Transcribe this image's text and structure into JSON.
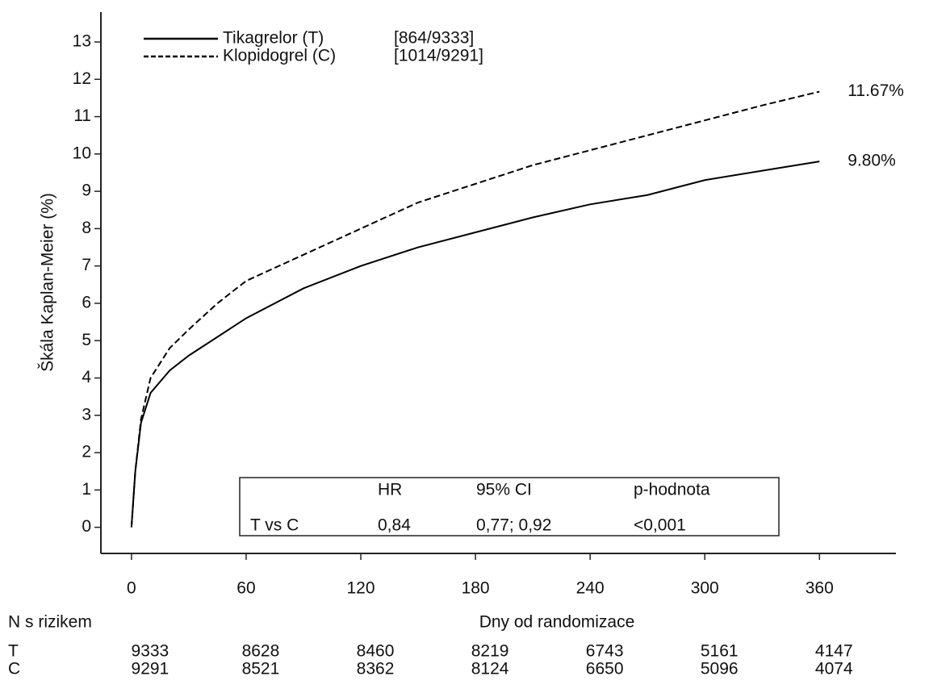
{
  "chart_data": {
    "type": "line",
    "y_label": "Škála Kaplan-Meier (%)",
    "x_label": "Dny od randomizace",
    "x": [
      0,
      2,
      5,
      10,
      20,
      30,
      45,
      60,
      90,
      120,
      150,
      180,
      210,
      240,
      270,
      300,
      330,
      360
    ],
    "series": [
      {
        "name": "Tikagrelor (T)",
        "count": "[864/9333]",
        "color": "#000000",
        "style": "solid",
        "values": [
          0,
          1.5,
          2.8,
          3.6,
          4.2,
          4.6,
          5.1,
          5.6,
          6.4,
          7.0,
          7.5,
          7.9,
          8.3,
          8.65,
          8.9,
          9.3,
          9.55,
          9.8
        ],
        "end_label": "9.80%"
      },
      {
        "name": "Klopidogrel (C)",
        "count": "[1014/9291]",
        "color": "#000000",
        "style": "dashed",
        "values": [
          0,
          1.5,
          2.9,
          4.0,
          4.8,
          5.3,
          6.0,
          6.6,
          7.3,
          8.0,
          8.7,
          9.2,
          9.7,
          10.1,
          10.5,
          10.9,
          11.3,
          11.67
        ],
        "end_label": "11.67%"
      }
    ],
    "xlim": [
      -16,
      400
    ],
    "ylim": [
      -0.7,
      13.8
    ],
    "xticks": [
      0,
      60,
      120,
      180,
      240,
      300,
      360
    ],
    "yticks": [
      0,
      1,
      2,
      3,
      4,
      5,
      6,
      7,
      8,
      9,
      10,
      11,
      12,
      13
    ],
    "stats": {
      "header": [
        "HR",
        "95% CI",
        "p-hodnota"
      ],
      "row": [
        "T vs C",
        "0,84",
        "0,77; 0,92",
        "<0,001"
      ]
    },
    "at_risk": {
      "title": "N s rizikem",
      "rows": [
        {
          "name": "T",
          "values": [
            9333,
            8628,
            8460,
            8219,
            6743,
            5161,
            4147
          ]
        },
        {
          "name": "C",
          "values": [
            9291,
            8521,
            8362,
            8124,
            6650,
            5096,
            4074
          ]
        }
      ]
    }
  }
}
